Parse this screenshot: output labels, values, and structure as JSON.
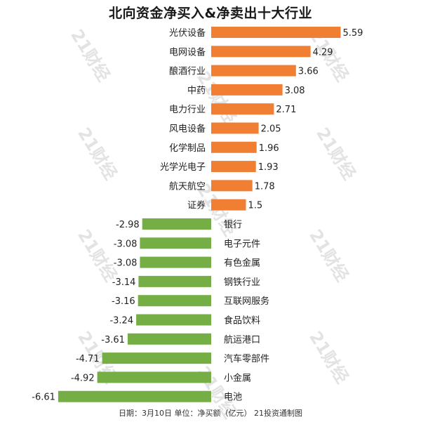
{
  "watermark_text": "21财经",
  "chart_data": {
    "type": "bar",
    "orientation": "horizontal",
    "title": "北向资金净买入&净卖出十大行业",
    "footer": "日期：3月10日 单位：净买额（亿元） 21投资通制图",
    "colors": {
      "positive": "#f07f34",
      "negative": "#76ae46"
    },
    "grid": false,
    "categories": [
      "光伏设备",
      "电网设备",
      "酿酒行业",
      "中药",
      "电力行业",
      "风电设备",
      "化学制品",
      "光学光电子",
      "航天航空",
      "证券",
      "银行",
      "电子元件",
      "有色金属",
      "钢铁行业",
      "互联网服务",
      "食品饮料",
      "航运港口",
      "汽车零部件",
      "小金属",
      "电池"
    ],
    "values": [
      5.59,
      4.29,
      3.66,
      3.08,
      2.71,
      2.05,
      1.96,
      1.93,
      1.78,
      1.5,
      -2.98,
      -3.08,
      -3.08,
      -3.14,
      -3.16,
      -3.24,
      -3.61,
      -4.71,
      -4.92,
      -6.61
    ],
    "value_labels": [
      "5.59",
      "4.29",
      "3.66",
      "3.08",
      "2.71",
      "2.05",
      "1.96",
      "1.93",
      "1.78",
      "1.5",
      "-2.98",
      "-3.08",
      "-3.08",
      "-3.14",
      "-3.16",
      "-3.24",
      "-3.61",
      "-4.71",
      "-4.92",
      "-6.61"
    ]
  }
}
